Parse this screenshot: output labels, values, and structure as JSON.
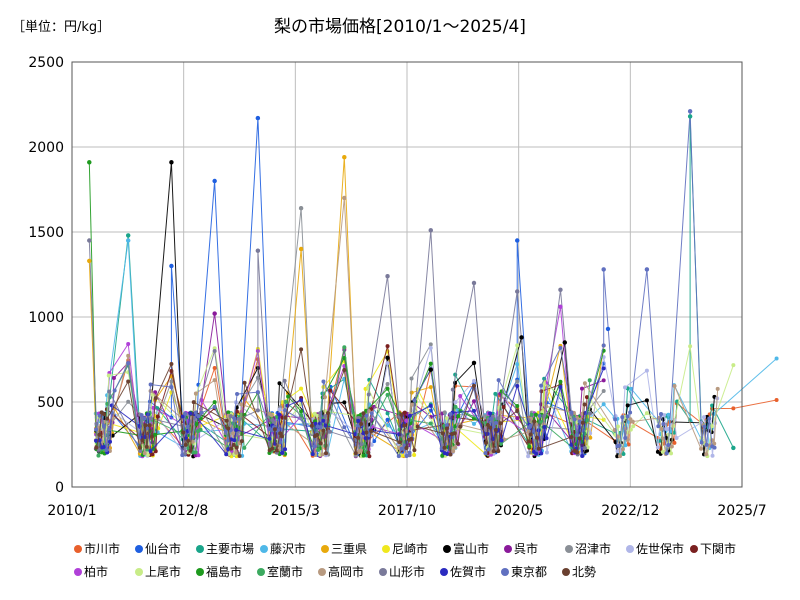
{
  "chart_data": {
    "type": "line",
    "title": "梨の市場価格[2010/1～2025/4]",
    "unit_label": "［単位：円/kg］",
    "xlabel": "",
    "ylabel": "",
    "ylim": [
      0,
      2500
    ],
    "yticks": [
      "0",
      "500",
      "1000",
      "1500",
      "2000",
      "2500"
    ],
    "xticks": [
      "2010/1",
      "2012/8",
      "2015/3",
      "2017/10",
      "2020/5",
      "2022/12",
      "2025/7"
    ],
    "xrange": [
      2010.0,
      2025.5
    ],
    "grid": true,
    "legend_position": "bottom",
    "series": [
      {
        "name": "市川市",
        "color": "#e8602c"
      },
      {
        "name": "仙台市",
        "color": "#1f5fe0"
      },
      {
        "name": "主要市場",
        "color": "#1aa58a"
      },
      {
        "name": "藤沢市",
        "color": "#4fb8e8"
      },
      {
        "name": "三重県",
        "color": "#e8a90c"
      },
      {
        "name": "尼崎市",
        "color": "#f0e81e"
      },
      {
        "name": "富山市",
        "color": "#000000"
      },
      {
        "name": "呉市",
        "color": "#8a1a9a"
      },
      {
        "name": "沼津市",
        "color": "#8a8f96"
      },
      {
        "name": "佐世保市",
        "color": "#b0b6e8"
      },
      {
        "name": "下関市",
        "color": "#7a2020"
      },
      {
        "name": "柏市",
        "color": "#b040d8"
      },
      {
        "name": "上尾市",
        "color": "#c8ec88"
      },
      {
        "name": "福島市",
        "color": "#1e9a1e"
      },
      {
        "name": "室蘭市",
        "color": "#3caa60"
      },
      {
        "name": "高岡市",
        "color": "#b89a80"
      },
      {
        "name": "山形市",
        "color": "#7a7a9a"
      },
      {
        "name": "佐賀市",
        "color": "#2a2ac0"
      },
      {
        "name": "東京都",
        "color": "#6070c0"
      },
      {
        "name": "北勢",
        "color": "#6a4030"
      }
    ],
    "peaks": [
      {
        "series": "福島市",
        "x": 2010.4,
        "y": 1910
      },
      {
        "series": "山形市",
        "x": 2010.4,
        "y": 1450
      },
      {
        "series": "三重県",
        "x": 2010.4,
        "y": 1330
      },
      {
        "series": "主要市場",
        "x": 2011.3,
        "y": 1480
      },
      {
        "series": "藤沢市",
        "x": 2011.3,
        "y": 1450
      },
      {
        "series": "富山市",
        "x": 2012.3,
        "y": 1910
      },
      {
        "series": "仙台市",
        "x": 2012.3,
        "y": 1300
      },
      {
        "series": "仙台市",
        "x": 2013.3,
        "y": 1800
      },
      {
        "series": "呉市",
        "x": 2013.3,
        "y": 1020
      },
      {
        "series": "仙台市",
        "x": 2014.3,
        "y": 2170
      },
      {
        "series": "山形市",
        "x": 2014.3,
        "y": 1390
      },
      {
        "series": "沼津市",
        "x": 2015.3,
        "y": 1640
      },
      {
        "series": "三重県",
        "x": 2015.3,
        "y": 1400
      },
      {
        "series": "三重県",
        "x": 2016.3,
        "y": 1940
      },
      {
        "series": "高岡市",
        "x": 2016.3,
        "y": 1700
      },
      {
        "series": "山形市",
        "x": 2017.3,
        "y": 1240
      },
      {
        "series": "富山市",
        "x": 2017.3,
        "y": 760
      },
      {
        "series": "山形市",
        "x": 2018.3,
        "y": 1510
      },
      {
        "series": "富山市",
        "x": 2018.3,
        "y": 690
      },
      {
        "series": "山形市",
        "x": 2019.3,
        "y": 1200
      },
      {
        "series": "富山市",
        "x": 2019.3,
        "y": 730
      },
      {
        "series": "仙台市",
        "x": 2020.3,
        "y": 1450
      },
      {
        "series": "山形市",
        "x": 2020.3,
        "y": 1150
      },
      {
        "series": "富山市",
        "x": 2020.4,
        "y": 880
      },
      {
        "series": "山形市",
        "x": 2021.3,
        "y": 1160
      },
      {
        "series": "柏市",
        "x": 2021.3,
        "y": 1060
      },
      {
        "series": "富山市",
        "x": 2021.4,
        "y": 850
      },
      {
        "series": "東京都",
        "x": 2022.3,
        "y": 1280
      },
      {
        "series": "仙台市",
        "x": 2022.4,
        "y": 930
      },
      {
        "series": "東京都",
        "x": 2023.3,
        "y": 1280
      },
      {
        "series": "主要市場",
        "x": 2024.3,
        "y": 2180
      },
      {
        "series": "東京都",
        "x": 2024.3,
        "y": 2210
      },
      {
        "series": "主要市場",
        "x": 2025.3,
        "y": 230
      }
    ]
  }
}
